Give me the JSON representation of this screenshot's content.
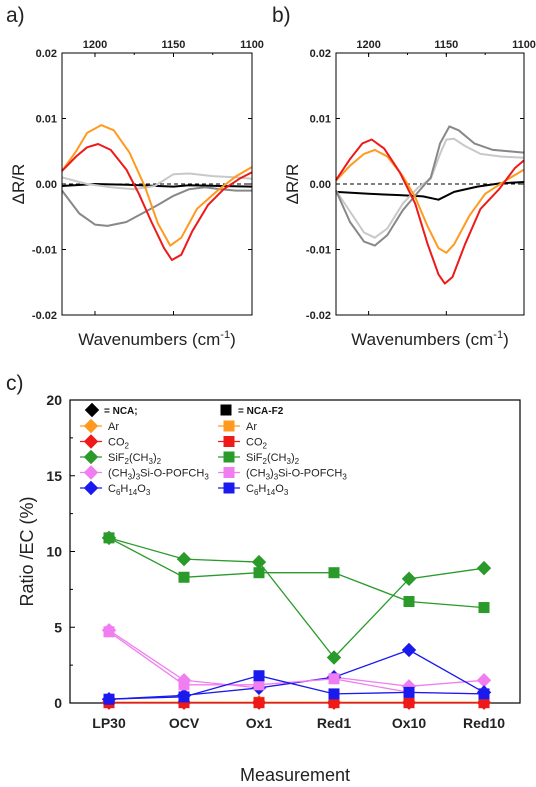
{
  "chart_data": [
    {
      "panel": "a)",
      "type": "line",
      "xlabel": "Wavenumbers (cm",
      "xlabel_sup": "-1",
      "xlabel_end": ")",
      "ylabel": "ΔR/R",
      "xlim": [
        1221,
        1100
      ],
      "ylim": [
        -0.02,
        0.02
      ],
      "x_ticks": [
        1200,
        1150,
        1100
      ],
      "y_ticks": [
        "0.02",
        "0.01",
        "0.00",
        "-0.01",
        "-0.02"
      ],
      "series": [
        {
          "color": "#000000",
          "points": [
            [
              1221,
              -0.0003
            ],
            [
              1200,
              0.0
            ],
            [
              1180,
              -0.0001
            ],
            [
              1160,
              -0.0003
            ],
            [
              1150,
              -0.0004
            ],
            [
              1140,
              -0.0002
            ],
            [
              1120,
              -0.0003
            ],
            [
              1100,
              -0.0004
            ]
          ]
        },
        {
          "color": "#c8c8c8",
          "points": [
            [
              1221,
              0.001
            ],
            [
              1205,
              0.0
            ],
            [
              1190,
              -0.0005
            ],
            [
              1175,
              -0.0008
            ],
            [
              1162,
              -0.0003
            ],
            [
              1150,
              0.0015
            ],
            [
              1140,
              0.0016
            ],
            [
              1125,
              0.0012
            ],
            [
              1110,
              0.001
            ],
            [
              1100,
              0.0008
            ]
          ]
        },
        {
          "color": "#888888",
          "points": [
            [
              1221,
              -0.001
            ],
            [
              1210,
              -0.0045
            ],
            [
              1200,
              -0.0062
            ],
            [
              1192,
              -0.0064
            ],
            [
              1180,
              -0.0058
            ],
            [
              1170,
              -0.0045
            ],
            [
              1160,
              -0.0032
            ],
            [
              1150,
              -0.0018
            ],
            [
              1140,
              -0.0008
            ],
            [
              1130,
              -0.0005
            ],
            [
              1120,
              -0.0008
            ],
            [
              1110,
              -0.001
            ],
            [
              1100,
              -0.001
            ]
          ]
        },
        {
          "color": "#ff9a1f",
          "points": [
            [
              1221,
              0.002
            ],
            [
              1212,
              0.005
            ],
            [
              1205,
              0.0078
            ],
            [
              1196,
              0.009
            ],
            [
              1188,
              0.0082
            ],
            [
              1178,
              0.0048
            ],
            [
              1168,
              -0.0005
            ],
            [
              1160,
              -0.006
            ],
            [
              1152,
              -0.0094
            ],
            [
              1145,
              -0.0082
            ],
            [
              1135,
              -0.0038
            ],
            [
              1122,
              -0.001
            ],
            [
              1110,
              0.0012
            ],
            [
              1100,
              0.0026
            ]
          ]
        },
        {
          "color": "#ee1a1a",
          "points": [
            [
              1221,
              0.002
            ],
            [
              1212,
              0.0042
            ],
            [
              1205,
              0.0056
            ],
            [
              1198,
              0.0061
            ],
            [
              1190,
              0.0052
            ],
            [
              1180,
              0.0022
            ],
            [
              1172,
              -0.0015
            ],
            [
              1164,
              -0.0058
            ],
            [
              1156,
              -0.0098
            ],
            [
              1151,
              -0.0116
            ],
            [
              1145,
              -0.0108
            ],
            [
              1138,
              -0.0072
            ],
            [
              1128,
              -0.0032
            ],
            [
              1118,
              -0.0008
            ],
            [
              1108,
              0.0008
            ],
            [
              1100,
              0.0018
            ]
          ]
        }
      ]
    },
    {
      "panel": "b)",
      "type": "line",
      "xlabel": "Wavenumbers (cm",
      "xlabel_sup": "-1",
      "xlabel_end": ")",
      "ylabel": "ΔR/R",
      "xlim": [
        1221,
        1100
      ],
      "ylim": [
        -0.02,
        0.02
      ],
      "x_ticks": [
        1200,
        1150,
        1100
      ],
      "y_ticks": [
        "0.02",
        "0.01",
        "0.00",
        "-0.01",
        "-0.02"
      ],
      "series": [
        {
          "color": "#000000",
          "points": [
            [
              1221,
              -0.0012
            ],
            [
              1200,
              -0.0015
            ],
            [
              1180,
              -0.0017
            ],
            [
              1165,
              -0.0019
            ],
            [
              1155,
              -0.0024
            ],
            [
              1145,
              -0.0012
            ],
            [
              1130,
              -0.0004
            ],
            [
              1115,
              0.0001
            ],
            [
              1100,
              0.0003
            ]
          ]
        },
        {
          "color": "#c8c8c8",
          "points": [
            [
              1221,
              -0.001
            ],
            [
              1212,
              -0.0042
            ],
            [
              1203,
              -0.0074
            ],
            [
              1196,
              -0.0082
            ],
            [
              1188,
              -0.0068
            ],
            [
              1178,
              -0.003
            ],
            [
              1168,
              -0.0005
            ],
            [
              1160,
              0.0008
            ],
            [
              1154,
              0.0046
            ],
            [
              1150,
              0.0068
            ],
            [
              1145,
              0.0069
            ],
            [
              1138,
              0.0058
            ],
            [
              1128,
              0.0046
            ],
            [
              1115,
              0.0042
            ],
            [
              1100,
              0.004
            ]
          ]
        },
        {
          "color": "#888888",
          "points": [
            [
              1221,
              -0.001
            ],
            [
              1212,
              -0.0058
            ],
            [
              1203,
              -0.0088
            ],
            [
              1196,
              -0.0094
            ],
            [
              1188,
              -0.0078
            ],
            [
              1178,
              -0.004
            ],
            [
              1168,
              -0.0012
            ],
            [
              1160,
              0.001
            ],
            [
              1154,
              0.0062
            ],
            [
              1148,
              0.0088
            ],
            [
              1142,
              0.0082
            ],
            [
              1132,
              0.0062
            ],
            [
              1120,
              0.0052
            ],
            [
              1110,
              0.005
            ],
            [
              1100,
              0.0048
            ]
          ]
        },
        {
          "color": "#ff9a1f",
          "points": [
            [
              1221,
              0.0005
            ],
            [
              1212,
              0.0028
            ],
            [
              1203,
              0.0046
            ],
            [
              1196,
              0.0052
            ],
            [
              1188,
              0.0042
            ],
            [
              1178,
              0.0012
            ],
            [
              1170,
              -0.002
            ],
            [
              1162,
              -0.0065
            ],
            [
              1155,
              -0.0098
            ],
            [
              1150,
              -0.0105
            ],
            [
              1145,
              -0.0092
            ],
            [
              1135,
              -0.0048
            ],
            [
              1125,
              -0.0015
            ],
            [
              1112,
              0.0005
            ],
            [
              1100,
              0.0022
            ]
          ]
        },
        {
          "color": "#ee1a1a",
          "points": [
            [
              1221,
              0.0006
            ],
            [
              1212,
              0.0038
            ],
            [
              1204,
              0.0062
            ],
            [
              1198,
              0.0068
            ],
            [
              1190,
              0.0054
            ],
            [
              1180,
              0.0018
            ],
            [
              1170,
              -0.003
            ],
            [
              1162,
              -0.0092
            ],
            [
              1155,
              -0.0138
            ],
            [
              1151,
              -0.0152
            ],
            [
              1146,
              -0.0142
            ],
            [
              1138,
              -0.0092
            ],
            [
              1128,
              -0.0038
            ],
            [
              1116,
              -0.0008
            ],
            [
              1106,
              0.0024
            ],
            [
              1100,
              0.0036
            ]
          ]
        }
      ]
    },
    {
      "panel": "c)",
      "type": "line",
      "xlabel": "Measurement",
      "ylabel": "Ratio /EC (%)",
      "categories": [
        "LP30",
        "OCV",
        "Ox1",
        "Red1",
        "Ox10",
        "Red10"
      ],
      "ylim": [
        0,
        20
      ],
      "y_ticks": [
        0,
        5,
        10,
        15,
        20
      ],
      "legend": {
        "placement": "top",
        "header_left": "= NCA;",
        "header_right": "= NCA-F2",
        "entries": [
          {
            "label": "Ar",
            "color": "#ff9a1f"
          },
          {
            "label": "CO",
            "sub": "2",
            "color": "#ee1a1a"
          },
          {
            "label": "SiF",
            "sub": "2",
            "rest": "(CH",
            "sub2": "3",
            "rest2": ")",
            "sub3": "2",
            "color": "#2a9a2a"
          },
          {
            "label": "(CH",
            "sub": "3",
            "rest": ")",
            "sub2": "3",
            "rest2": "Si-O-POFCH",
            "sub3": "3",
            "color": "#f07ef0"
          },
          {
            "label": "C",
            "sub": "6",
            "rest": "H",
            "sub2": "14",
            "rest2": "O",
            "sub3": "3",
            "color": "#1a1aee"
          }
        ]
      },
      "series": [
        {
          "name": "Ar",
          "marker": "diamond",
          "color": "#ff9a1f",
          "values": [
            0.05,
            0.05,
            0.05,
            0.05,
            0.05,
            0.05
          ]
        },
        {
          "name": "CO2",
          "marker": "diamond",
          "color": "#ee1a1a",
          "values": [
            0.02,
            0.02,
            0.02,
            0.02,
            0.02,
            0.02
          ]
        },
        {
          "name": "SiF2(CH3)2",
          "marker": "diamond",
          "color": "#2a9a2a",
          "values": [
            10.9,
            9.5,
            9.3,
            3.0,
            8.2,
            8.9
          ]
        },
        {
          "name": "(CH3)3Si-O-POFCH3",
          "marker": "diamond",
          "color": "#f07ef0",
          "values": [
            4.8,
            1.5,
            1.0,
            1.7,
            1.1,
            1.5
          ]
        },
        {
          "name": "C6H14O3",
          "marker": "diamond",
          "color": "#1a1aee",
          "values": [
            0.25,
            0.5,
            1.0,
            1.7,
            3.5,
            0.7
          ]
        },
        {
          "name": "Ar",
          "marker": "square",
          "color": "#ff9a1f",
          "values": [
            0.05,
            0.05,
            0.05,
            0.05,
            0.05,
            0.05
          ]
        },
        {
          "name": "CO2",
          "marker": "square",
          "color": "#ee1a1a",
          "values": [
            0.02,
            0.02,
            0.02,
            0.02,
            0.02,
            0.02
          ]
        },
        {
          "name": "SiF2(CH3)2",
          "marker": "square",
          "color": "#2a9a2a",
          "values": [
            10.9,
            8.3,
            8.6,
            8.6,
            6.7,
            6.3
          ]
        },
        {
          "name": "(CH3)3Si-O-POFCH3",
          "marker": "square",
          "color": "#f07ef0",
          "values": [
            4.7,
            1.2,
            1.2,
            1.6,
            0.7,
            0.6
          ]
        },
        {
          "name": "C6H14O3",
          "marker": "square",
          "color": "#1a1aee",
          "values": [
            0.25,
            0.4,
            1.8,
            0.6,
            0.7,
            0.6
          ]
        }
      ]
    }
  ]
}
